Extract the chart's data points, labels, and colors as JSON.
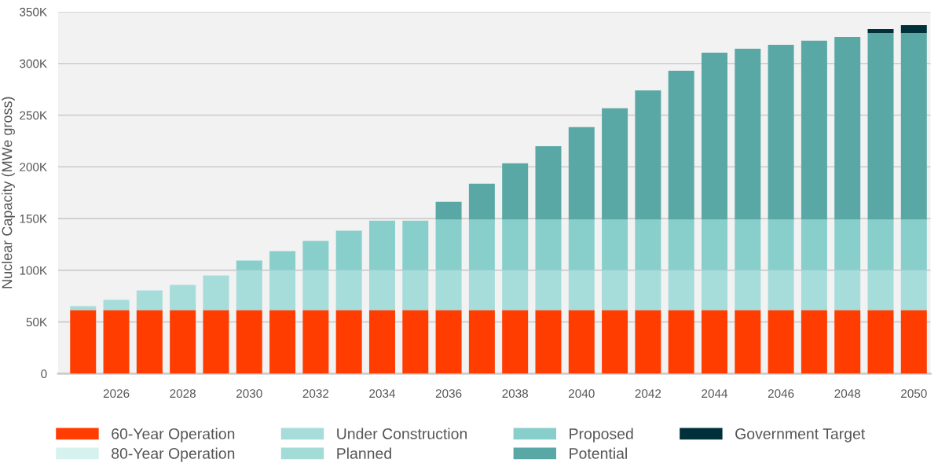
{
  "chart_data": {
    "type": "bar",
    "stacked": true,
    "ylabel": "Nuclear Capacity (MWe gross)",
    "categories": [
      null,
      "2026",
      null,
      "2028",
      null,
      "2030",
      null,
      "2032",
      null,
      "2034",
      null,
      "2036",
      null,
      "2038",
      null,
      "2040",
      null,
      "2042",
      null,
      "2044",
      null,
      "2046",
      null,
      "2048",
      null,
      "2050"
    ],
    "series": [
      {
        "name": "60-Year Operation",
        "color": "#ff3d00",
        "values": [
          61500,
          61500,
          61500,
          61500,
          61500,
          61500,
          61500,
          61500,
          61500,
          61500,
          61500,
          61500,
          61500,
          61500,
          61500,
          61500,
          61500,
          61500,
          61500,
          61500,
          61500,
          61500,
          61500,
          61500,
          61500,
          61500
        ]
      },
      {
        "name": "80-Year Operation",
        "color": "#d6f2ef",
        "values": [
          null,
          null,
          null,
          null,
          null,
          null,
          null,
          null,
          null,
          null,
          null,
          null,
          null,
          null,
          null,
          null,
          null,
          null,
          null,
          null,
          null,
          null,
          null,
          null,
          null,
          null
        ]
      },
      {
        "name": "Under Construction",
        "color": "#a6dcd9",
        "values": [
          3800,
          9900,
          19000,
          24300,
          33400,
          38500,
          38500,
          38500,
          38500,
          38500,
          38500,
          38500,
          38500,
          38500,
          38500,
          38500,
          38500,
          38500,
          38500,
          38500,
          38500,
          38500,
          38500,
          38500,
          38500,
          38500
        ]
      },
      {
        "name": "Planned",
        "color": "#a3dbd6",
        "values": [
          null,
          null,
          null,
          null,
          null,
          null,
          null,
          null,
          null,
          null,
          null,
          null,
          null,
          null,
          null,
          null,
          null,
          null,
          null,
          null,
          null,
          null,
          null,
          null,
          null,
          null
        ]
      },
      {
        "name": "Proposed",
        "color": "#88cfcb",
        "values": [
          null,
          null,
          null,
          null,
          null,
          9300,
          18500,
          28300,
          38200,
          48000,
          48000,
          49000,
          49000,
          49000,
          49000,
          49000,
          49000,
          49000,
          49000,
          49000,
          49000,
          49000,
          49000,
          49000,
          49000,
          49000
        ]
      },
      {
        "name": "Potential",
        "color": "#5aa8a5",
        "values": [
          null,
          null,
          null,
          null,
          null,
          null,
          null,
          null,
          null,
          null,
          null,
          17300,
          34700,
          54500,
          71000,
          89400,
          107600,
          125000,
          144000,
          161500,
          165300,
          169000,
          173000,
          176700,
          180500,
          180500
        ]
      },
      {
        "name": "Government Target",
        "color": "#00313a",
        "values": [
          null,
          null,
          null,
          null,
          null,
          null,
          null,
          null,
          null,
          null,
          null,
          null,
          null,
          null,
          null,
          null,
          null,
          null,
          null,
          null,
          null,
          null,
          null,
          null,
          3800,
          7500
        ]
      }
    ],
    "ylim": [
      0,
      350000
    ],
    "yticks": [
      0,
      {
        "value": 50000,
        "label": "50K"
      },
      {
        "value": 100000,
        "label": "100K"
      },
      {
        "value": 150000,
        "label": "150K"
      },
      {
        "value": 200000,
        "label": "200K"
      },
      {
        "value": 250000,
        "label": "250K"
      },
      {
        "value": 300000,
        "label": "300K"
      },
      {
        "value": 350000,
        "label": "350K"
      }
    ],
    "grid": "y",
    "legend": "bottom"
  }
}
